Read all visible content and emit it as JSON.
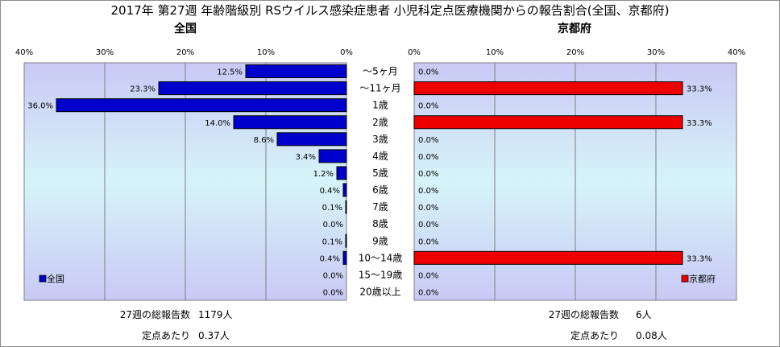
{
  "chart_data": {
    "type": "bar",
    "orientation": "horizontal",
    "title": "2017年 第27週 年齢階級別 RSウイルス感染症患者 小児科定点医療機関からの報告割合(全国、京都府)",
    "categories": [
      "～5ヶ月",
      "～11ヶ月",
      "1歳",
      "2歳",
      "3歳",
      "4歳",
      "5歳",
      "6歳",
      "7歳",
      "8歳",
      "9歳",
      "10～14歳",
      "15～19歳",
      "20歳以上"
    ],
    "xlim": [
      0,
      40
    ],
    "xticks": [
      "40%",
      "30%",
      "20%",
      "10%",
      "0%"
    ],
    "xticks_right": [
      "0%",
      "10%",
      "20%",
      "30%",
      "40%"
    ],
    "grid": true,
    "panels": [
      {
        "key": "national",
        "subtitle": "全国",
        "legend": "全国",
        "legend_position": "bottom-left",
        "color": "#0000cc",
        "values": [
          12.5,
          23.3,
          36.0,
          14.0,
          8.6,
          3.4,
          1.2,
          0.4,
          0.1,
          0.0,
          0.1,
          0.4,
          0.0,
          0.0
        ],
        "labels": [
          "12.5%",
          "23.3%",
          "36.0%",
          "14.0%",
          "8.6%",
          "3.4%",
          "1.2%",
          "0.4%",
          "0.1%",
          "0.0%",
          "0.1%",
          "0.4%",
          "0.0%",
          "0.0%"
        ],
        "footer": [
          {
            "label": "27週の総報告数",
            "value": "1179人"
          },
          {
            "label": "定点あたり",
            "value": "0.37人"
          }
        ]
      },
      {
        "key": "kyoto",
        "subtitle": "京都府",
        "legend": "京都府",
        "legend_position": "bottom-right",
        "color": "#ee0000",
        "values": [
          0.0,
          33.3,
          0.0,
          33.3,
          0.0,
          0.0,
          0.0,
          0.0,
          0.0,
          0.0,
          0.0,
          33.3,
          0.0,
          0.0
        ],
        "labels": [
          "0.0%",
          "33.3%",
          "0.0%",
          "33.3%",
          "0.0%",
          "0.0%",
          "0.0%",
          "0.0%",
          "0.0%",
          "0.0%",
          "0.0%",
          "33.3%",
          "0.0%",
          "0.0%"
        ],
        "footer": [
          {
            "label": "27週の総報告数",
            "value": "6人"
          },
          {
            "label": "定点あたり",
            "value": "0.08人"
          }
        ]
      }
    ]
  }
}
